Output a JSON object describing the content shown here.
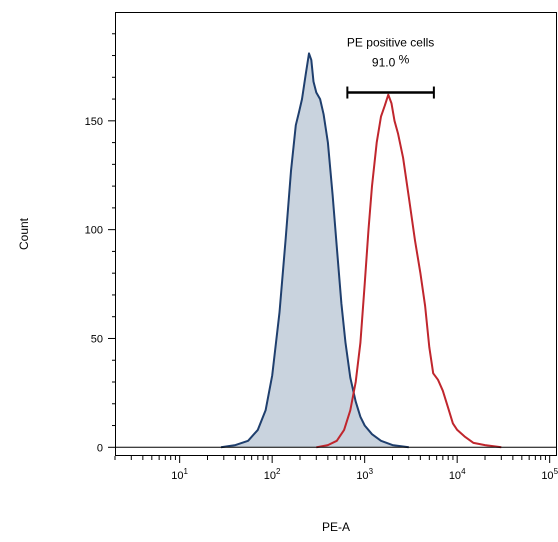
{
  "chart_data": {
    "type": "histogram",
    "xlabel": "PE-A",
    "ylabel": "Count",
    "xscale": "log",
    "xlim": [
      2,
      120000
    ],
    "ylim": [
      -4,
      200
    ],
    "yticks": [
      {
        "value": 0,
        "label": "0"
      },
      {
        "value": 50,
        "label": "50"
      },
      {
        "value": 100,
        "label": "100"
      },
      {
        "value": 150,
        "label": "150"
      }
    ],
    "xticks": [
      {
        "value": 10,
        "base": "10",
        "exp": "1"
      },
      {
        "value": 100,
        "base": "10",
        "exp": "2"
      },
      {
        "value": 1000,
        "base": "10",
        "exp": "3"
      },
      {
        "value": 10000,
        "base": "10",
        "exp": "4"
      },
      {
        "value": 100000,
        "base": "10",
        "exp": "5"
      }
    ],
    "gate": {
      "label": "PE positive cells",
      "percent_value": "91.0",
      "percent_symbol": "%",
      "x_range": [
        650,
        5600
      ],
      "y": 163
    },
    "series": [
      {
        "color": "#1f3f6e",
        "fill": "#c9d3de",
        "filled": true,
        "points": [
          [
            28,
            0
          ],
          [
            40,
            1
          ],
          [
            55,
            3
          ],
          [
            70,
            8
          ],
          [
            85,
            17
          ],
          [
            100,
            33
          ],
          [
            120,
            62
          ],
          [
            140,
            96
          ],
          [
            160,
            127
          ],
          [
            180,
            148
          ],
          [
            195,
            154
          ],
          [
            210,
            160
          ],
          [
            230,
            171
          ],
          [
            250,
            181
          ],
          [
            265,
            178
          ],
          [
            280,
            168
          ],
          [
            300,
            163
          ],
          [
            330,
            160
          ],
          [
            360,
            153
          ],
          [
            400,
            140
          ],
          [
            450,
            116
          ],
          [
            500,
            92
          ],
          [
            560,
            66
          ],
          [
            620,
            48
          ],
          [
            700,
            32
          ],
          [
            800,
            21
          ],
          [
            900,
            14
          ],
          [
            1000,
            10
          ],
          [
            1200,
            6
          ],
          [
            1500,
            3
          ],
          [
            2000,
            1
          ],
          [
            3000,
            0
          ]
        ]
      },
      {
        "color": "#c0262d",
        "fill": "none",
        "filled": false,
        "points": [
          [
            300,
            0
          ],
          [
            400,
            1
          ],
          [
            500,
            3
          ],
          [
            600,
            8
          ],
          [
            700,
            17
          ],
          [
            800,
            30
          ],
          [
            900,
            48
          ],
          [
            1000,
            75
          ],
          [
            1100,
            100
          ],
          [
            1200,
            120
          ],
          [
            1350,
            140
          ],
          [
            1500,
            152
          ],
          [
            1650,
            157
          ],
          [
            1800,
            162
          ],
          [
            1950,
            158
          ],
          [
            2100,
            150
          ],
          [
            2300,
            144
          ],
          [
            2600,
            133
          ],
          [
            3000,
            115
          ],
          [
            3500,
            95
          ],
          [
            4000,
            80
          ],
          [
            4500,
            65
          ],
          [
            5000,
            46
          ],
          [
            5500,
            34
          ],
          [
            6200,
            31
          ],
          [
            7000,
            26
          ],
          [
            8000,
            18
          ],
          [
            9000,
            11
          ],
          [
            10000,
            8
          ],
          [
            12000,
            5
          ],
          [
            15000,
            2
          ],
          [
            20000,
            1
          ],
          [
            30000,
            0
          ]
        ]
      }
    ]
  }
}
